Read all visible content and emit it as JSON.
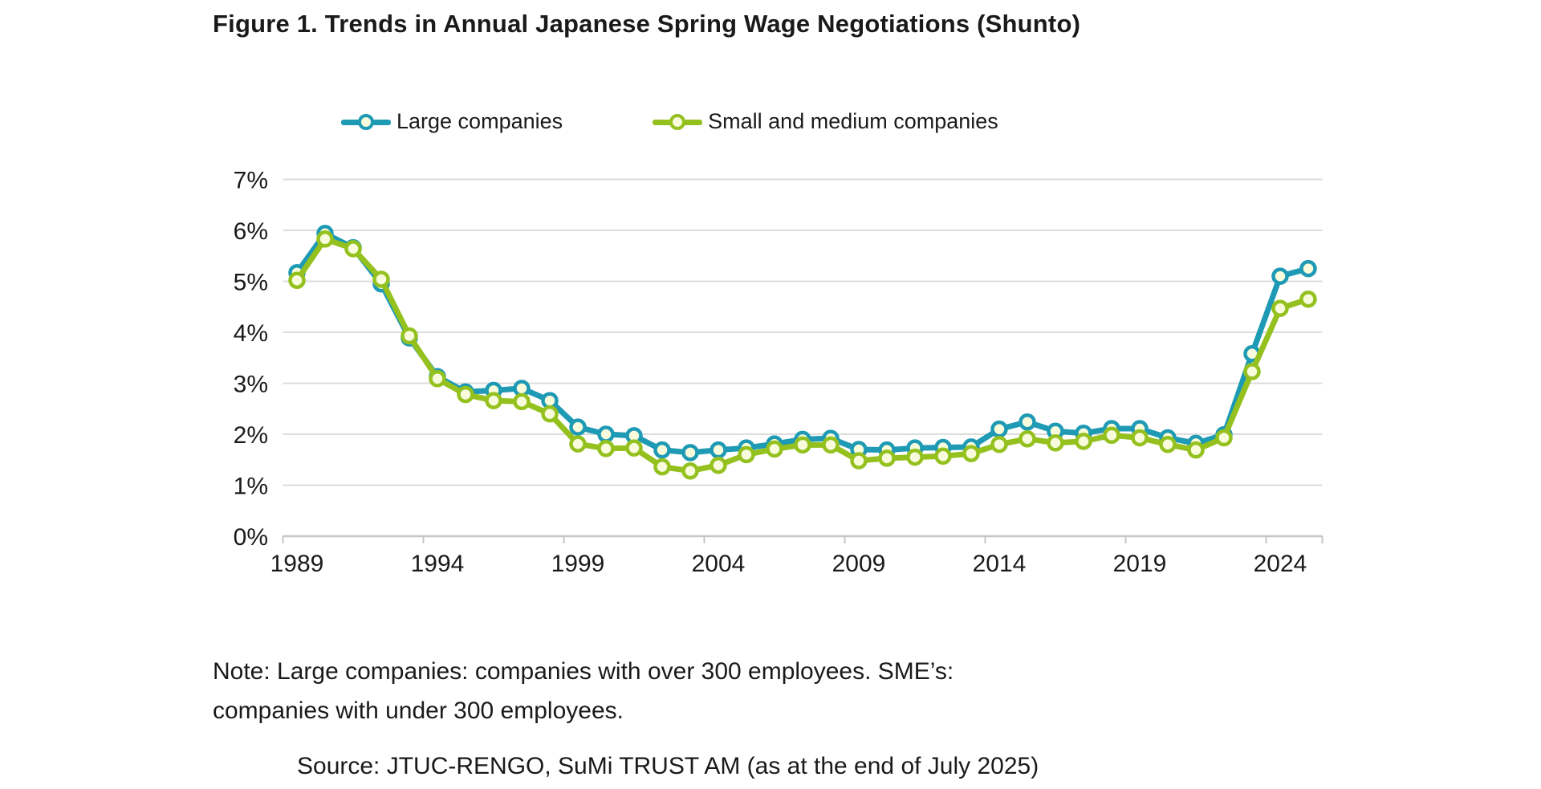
{
  "figure": {
    "title": "Figure 1. Trends in Annual Japanese Spring Wage Negotiations (Shunto)",
    "note_line1": "Note: Large companies: companies with over 300 employees.  SME’s:",
    "note_line2": "companies with under 300 employees.",
    "source": "Source: JTUC-RENGO, SuMi TRUST AM (as at the end of July 2025)"
  },
  "legend": {
    "items": [
      {
        "label": "Large companies"
      },
      {
        "label": "Small and medium companies"
      }
    ]
  },
  "chart_data": {
    "type": "line",
    "title": "Figure 1. Trends in Annual Japanese Spring Wage Negotiations (Shunto)",
    "xlabel": "",
    "ylabel": "",
    "x": [
      1989,
      1990,
      1991,
      1992,
      1993,
      1994,
      1995,
      1996,
      1997,
      1998,
      1999,
      2000,
      2001,
      2002,
      2003,
      2004,
      2005,
      2006,
      2007,
      2008,
      2009,
      2010,
      2011,
      2012,
      2013,
      2014,
      2015,
      2016,
      2017,
      2018,
      2019,
      2020,
      2021,
      2022,
      2023,
      2024,
      2025
    ],
    "series": [
      {
        "name": "Large companies",
        "color": "#1E9AB4",
        "values": [
          5.17,
          5.94,
          5.66,
          4.95,
          3.89,
          3.13,
          2.83,
          2.86,
          2.9,
          2.66,
          2.14,
          2.0,
          1.97,
          1.69,
          1.64,
          1.69,
          1.73,
          1.81,
          1.9,
          1.92,
          1.7,
          1.69,
          1.73,
          1.74,
          1.75,
          2.1,
          2.24,
          2.06,
          2.02,
          2.11,
          2.11,
          1.93,
          1.82,
          1.99,
          3.58,
          5.1,
          5.25
        ]
      },
      {
        "name": "Small and medium companies",
        "color": "#95C11F",
        "values": [
          5.02,
          5.83,
          5.64,
          5.04,
          3.93,
          3.09,
          2.78,
          2.66,
          2.64,
          2.4,
          1.81,
          1.72,
          1.73,
          1.36,
          1.28,
          1.39,
          1.6,
          1.71,
          1.79,
          1.79,
          1.48,
          1.53,
          1.55,
          1.57,
          1.62,
          1.8,
          1.91,
          1.83,
          1.86,
          1.98,
          1.93,
          1.8,
          1.69,
          1.93,
          3.23,
          4.47,
          4.65
        ]
      }
    ],
    "ylim": [
      0,
      7
    ],
    "ytick_step": 1,
    "ytick_suffix": "%",
    "xticks": [
      1989,
      1994,
      1999,
      2004,
      2009,
      2014,
      2019,
      2024
    ],
    "grid": true,
    "legend_position": "top",
    "marker_fill": "#F8FBDC",
    "gridline_color": "#DCDCDC",
    "axis_color": "#C6C6C6",
    "text_color": "#1A1A1A"
  }
}
